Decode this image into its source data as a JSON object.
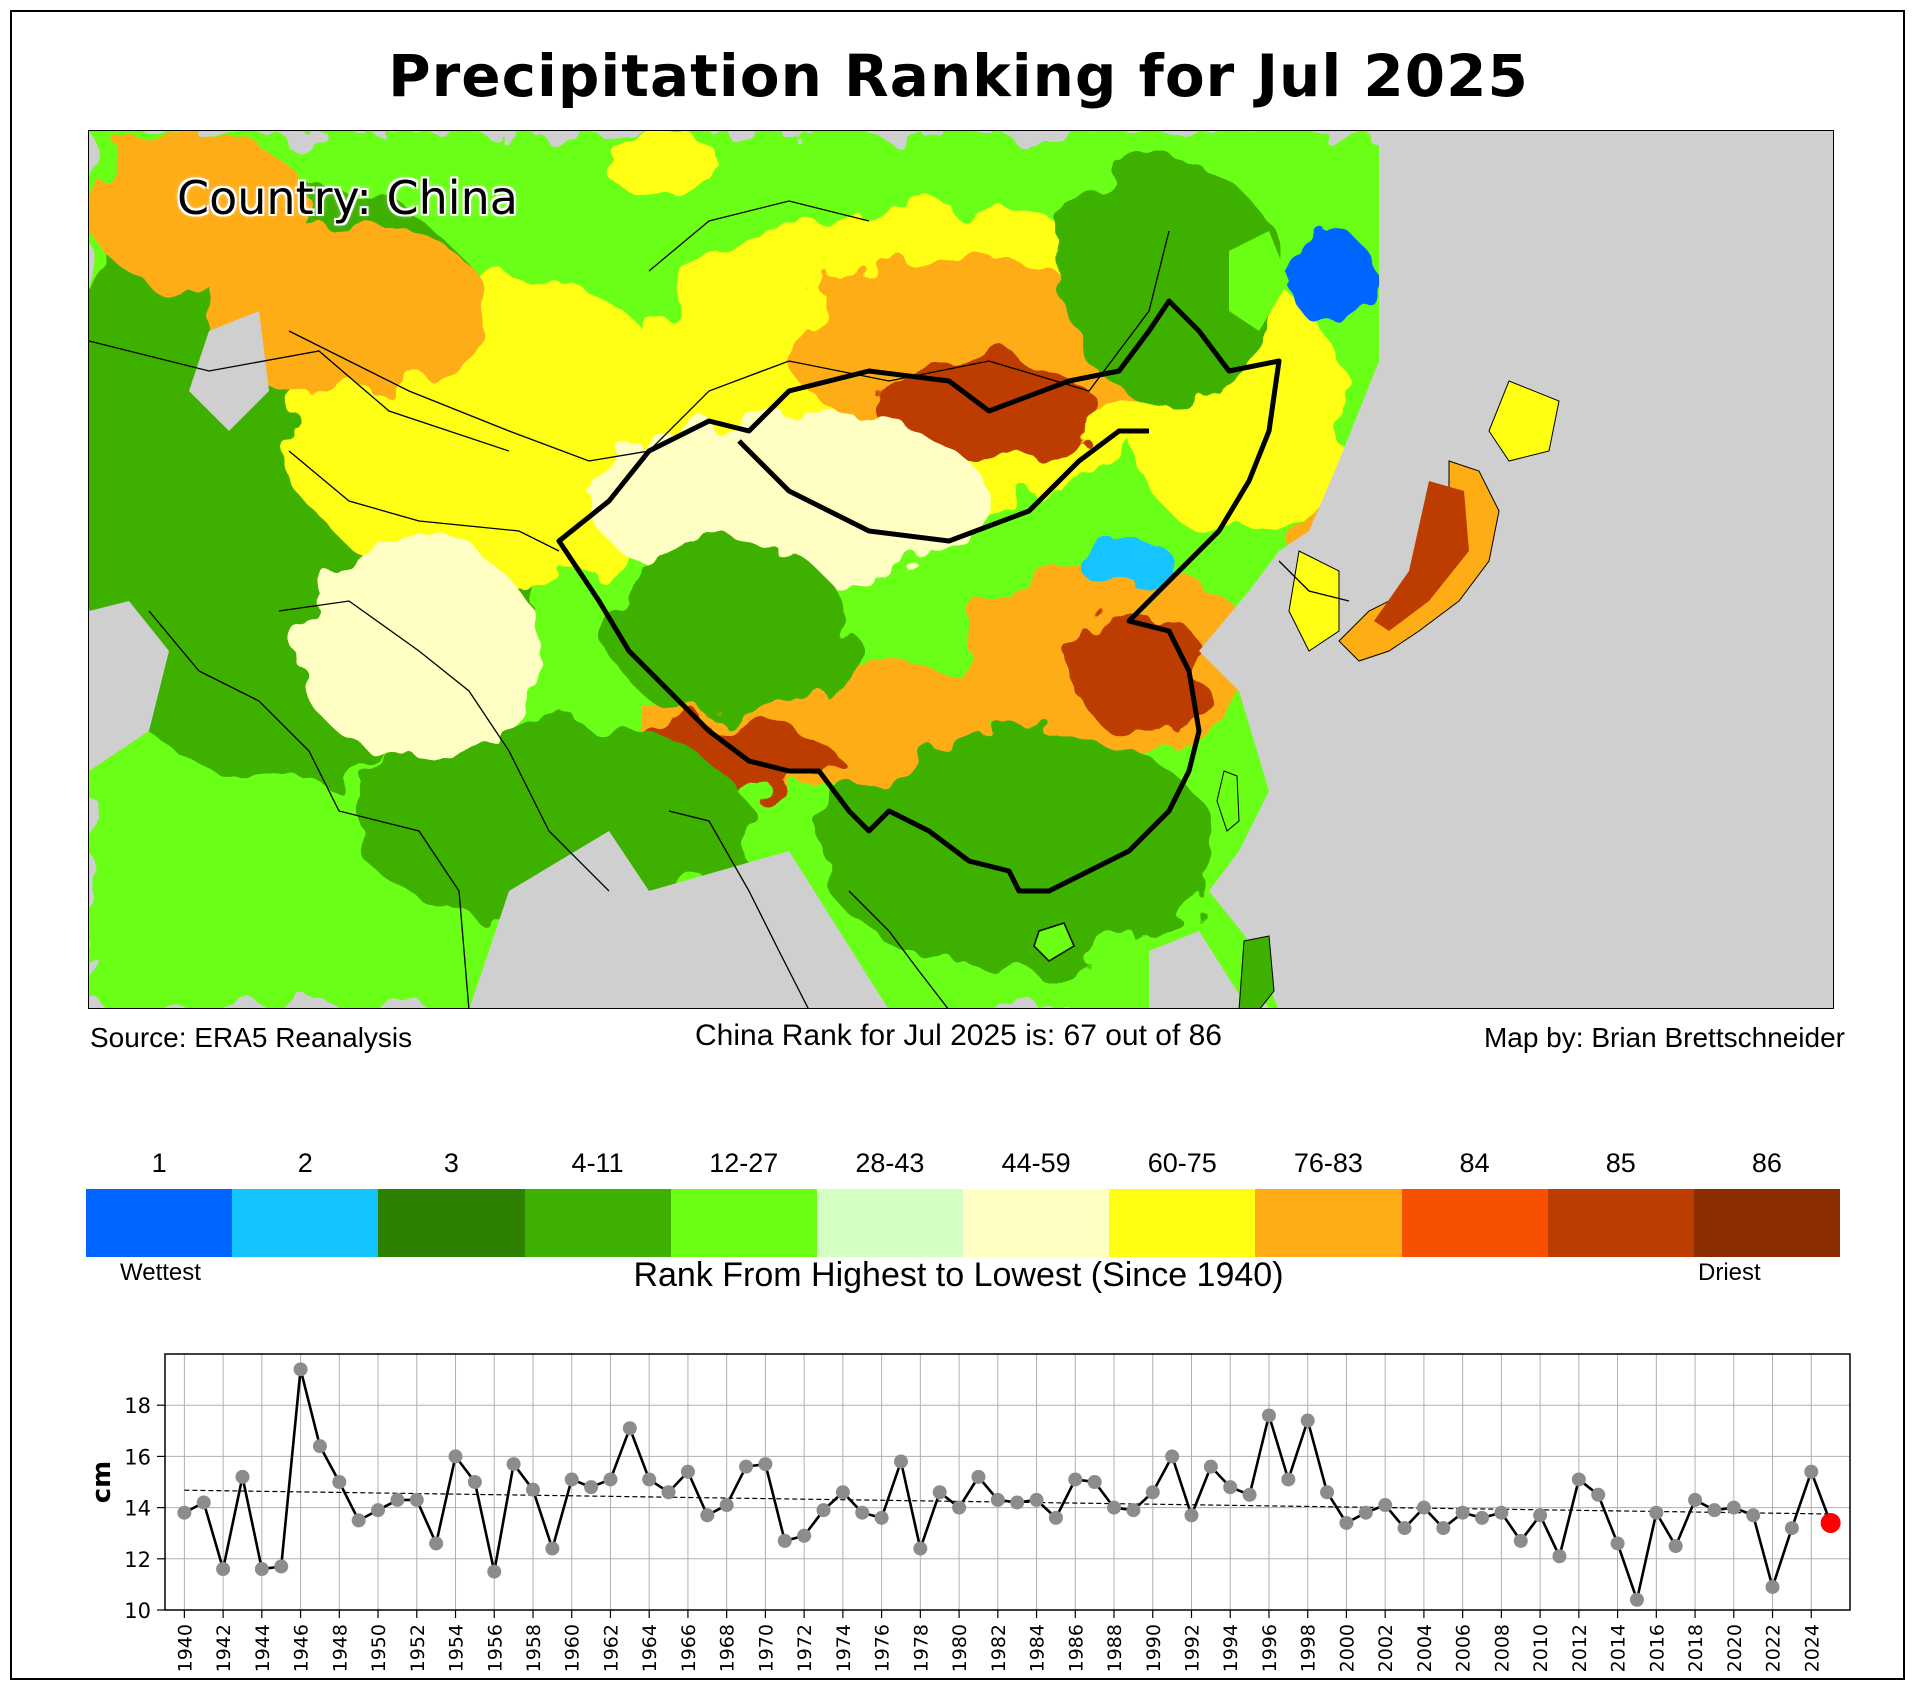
{
  "title": "Precipitation Ranking for Jul 2025",
  "map": {
    "country_label": "Country: China",
    "source": "Source: ERA5 Reanalysis",
    "rank_text": "China Rank for Jul 2025 is: 67 out of 86",
    "credit": "Map by: Brian Brettschneider"
  },
  "colorbar": {
    "bins": [
      {
        "label": "1",
        "color": "#0066ff"
      },
      {
        "label": "2",
        "color": "#14c4ff"
      },
      {
        "label": "3",
        "color": "#2e8000"
      },
      {
        "label": "4-11",
        "color": "#3db000"
      },
      {
        "label": "12-27",
        "color": "#6bff14"
      },
      {
        "label": "28-43",
        "color": "#d4ffc2"
      },
      {
        "label": "44-59",
        "color": "#ffffc4"
      },
      {
        "label": "60-75",
        "color": "#ffff14"
      },
      {
        "label": "76-83",
        "color": "#ffad14"
      },
      {
        "label": "84",
        "color": "#f75000"
      },
      {
        "label": "85",
        "color": "#bd3d00"
      },
      {
        "label": "86",
        "color": "#8a2d00"
      }
    ],
    "wettest_label": "Wettest",
    "driest_label": "Driest",
    "caption": "Rank From Highest to Lowest (Since 1940)"
  },
  "chart_data": {
    "type": "line",
    "title": "",
    "xlabel": "",
    "ylabel": "cm",
    "xlim": [
      1939,
      2026
    ],
    "ylim": [
      10,
      20
    ],
    "yticks": [
      10,
      12,
      14,
      16,
      18
    ],
    "xticks": [
      1940,
      1942,
      1944,
      1946,
      1948,
      1950,
      1952,
      1954,
      1956,
      1958,
      1960,
      1962,
      1964,
      1966,
      1968,
      1970,
      1972,
      1974,
      1976,
      1978,
      1980,
      1982,
      1984,
      1986,
      1988,
      1990,
      1992,
      1994,
      1996,
      1998,
      2000,
      2002,
      2004,
      2006,
      2008,
      2010,
      2012,
      2014,
      2016,
      2018,
      2020,
      2022,
      2024
    ],
    "grid": true,
    "x": [
      1940,
      1941,
      1942,
      1943,
      1944,
      1945,
      1946,
      1947,
      1948,
      1949,
      1950,
      1951,
      1952,
      1953,
      1954,
      1955,
      1956,
      1957,
      1958,
      1959,
      1960,
      1961,
      1962,
      1963,
      1964,
      1965,
      1966,
      1967,
      1968,
      1969,
      1970,
      1971,
      1972,
      1973,
      1974,
      1975,
      1976,
      1977,
      1978,
      1979,
      1980,
      1981,
      1982,
      1983,
      1984,
      1985,
      1986,
      1987,
      1988,
      1989,
      1990,
      1991,
      1992,
      1993,
      1994,
      1995,
      1996,
      1997,
      1998,
      1999,
      2000,
      2001,
      2002,
      2003,
      2004,
      2005,
      2006,
      2007,
      2008,
      2009,
      2010,
      2011,
      2012,
      2013,
      2014,
      2015,
      2016,
      2017,
      2018,
      2019,
      2020,
      2021,
      2022,
      2023,
      2024,
      2025
    ],
    "series": [
      {
        "name": "July precipitation",
        "values": [
          13.8,
          14.2,
          11.6,
          15.2,
          11.6,
          11.7,
          19.4,
          16.4,
          15.0,
          13.5,
          13.9,
          14.3,
          14.3,
          12.6,
          16.0,
          15.0,
          11.5,
          15.7,
          14.7,
          12.4,
          15.1,
          14.8,
          15.1,
          17.1,
          15.1,
          14.6,
          15.4,
          13.7,
          14.1,
          15.6,
          15.7,
          12.7,
          12.9,
          13.9,
          14.6,
          13.8,
          13.6,
          15.8,
          12.4,
          14.6,
          14.0,
          15.2,
          14.3,
          14.2,
          14.3,
          13.6,
          15.1,
          15.0,
          14.0,
          13.9,
          14.6,
          16.0,
          13.7,
          15.6,
          14.8,
          14.5,
          17.6,
          15.1,
          17.4,
          14.6,
          13.4,
          13.8,
          14.1,
          13.2,
          14.0,
          13.2,
          13.8,
          13.6,
          13.8,
          12.7,
          13.7,
          12.1,
          15.1,
          14.5,
          12.6,
          10.4,
          13.8,
          12.5,
          14.3,
          13.9,
          14.0,
          13.7,
          10.9,
          13.2,
          15.4,
          13.4
        ]
      },
      {
        "name": "trend",
        "values": [
          14.68,
          13.75
        ],
        "x": [
          1940,
          2025
        ]
      }
    ],
    "highlight": {
      "x": 2025,
      "value": 13.4,
      "color": "#ff0000"
    }
  }
}
